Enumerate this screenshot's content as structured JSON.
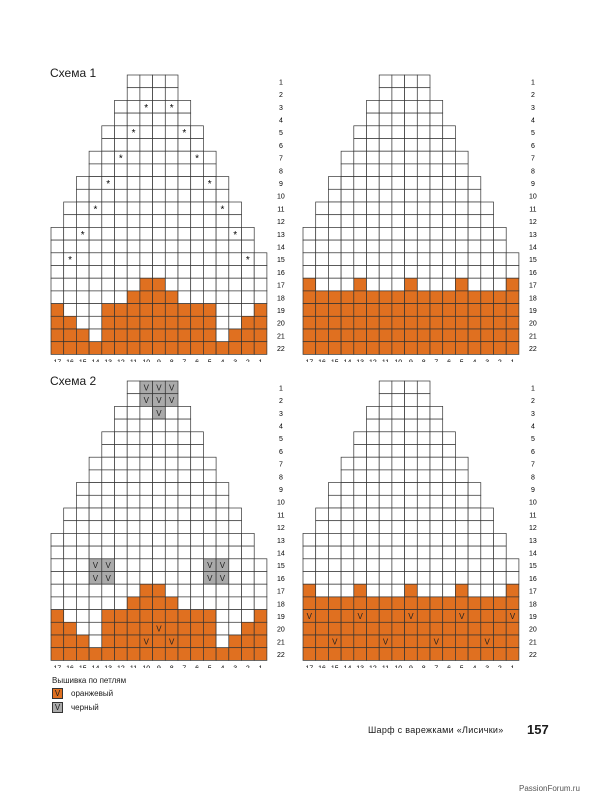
{
  "scheme1_title": "Схема 1",
  "scheme2_title": "Схема 2",
  "colors": {
    "orange": "#e07020",
    "gray": "#aaaaaa",
    "grid": "#333333",
    "white": "#ffffff"
  },
  "col_labels": [
    "17",
    "16",
    "15",
    "14",
    "13",
    "12",
    "11",
    "10",
    "9",
    "8",
    "7",
    "6",
    "5",
    "4",
    "3",
    "2",
    "1"
  ],
  "row_labels": [
    "1",
    "2",
    "3",
    "4",
    "5",
    "6",
    "7",
    "8",
    "9",
    "10",
    "11",
    "12",
    "13",
    "14",
    "15",
    "16",
    "17",
    "18",
    "19",
    "20",
    "21",
    "22"
  ],
  "star_symbol": "*",
  "stitch_symbol": "V",
  "legend": {
    "title": "Вышивка по петлям",
    "items": [
      {
        "symbol": "V",
        "label": "оранжевый",
        "color": "#e07020"
      },
      {
        "symbol": "V",
        "label": "черный",
        "color": "#aaaaaa"
      }
    ]
  },
  "footer_text": "Шарф с варежками «Лисички»",
  "page_number": "157",
  "watermark": "PassionForum.ru"
}
